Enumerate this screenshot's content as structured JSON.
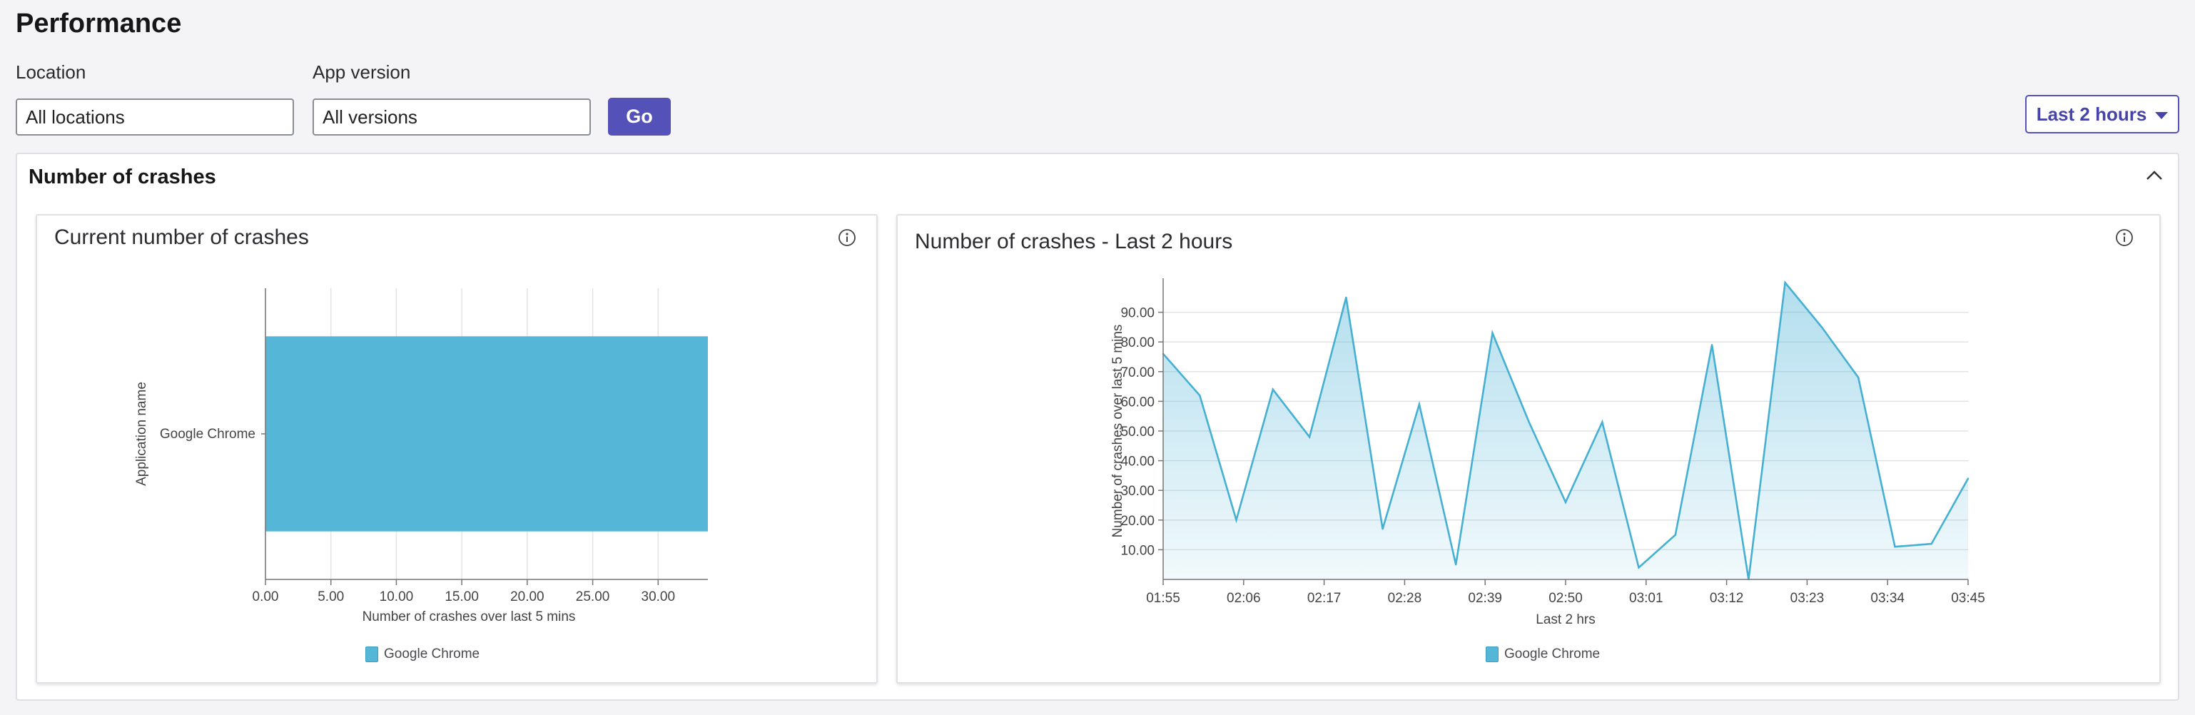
{
  "page": {
    "title": "Performance"
  },
  "filters": {
    "location_label": "Location",
    "location_value": "All locations",
    "version_label": "App version",
    "version_value": "All versions",
    "go_label": "Go",
    "range_label": "Last 2 hours"
  },
  "section": {
    "title": "Number of crashes"
  },
  "colors": {
    "accent": "#5451b8",
    "series": "#55b6d8",
    "series_line": "#45b0d2"
  },
  "icons": {
    "collapse": "chevron-up-icon",
    "info": "info-icon",
    "dropdown": "caret-down-icon"
  },
  "chart_data": [
    {
      "type": "bar",
      "orientation": "horizontal",
      "title": "Current number of crashes",
      "categories": [
        "Google Chrome"
      ],
      "values": [
        33.8
      ],
      "xlabel": "Number of crashes over last 5 mins",
      "ylabel": "Application name",
      "xlim": [
        0,
        33.8
      ],
      "xticks": [
        "0.00",
        "5.00",
        "10.00",
        "15.00",
        "20.00",
        "25.00",
        "30.00"
      ],
      "legend": [
        "Google Chrome"
      ],
      "legend_position": "bottom",
      "grid": true
    },
    {
      "type": "area",
      "title": "Number of crashes - Last 2 hours",
      "x": [
        "01:55",
        "02:00",
        "02:06",
        "02:11",
        "02:15",
        "02:19",
        "02:24",
        "02:28",
        "02:33",
        "02:39",
        "02:44",
        "02:50",
        "02:55",
        "03:01",
        "03:06",
        "03:10",
        "03:14",
        "03:19",
        "03:23",
        "03:29",
        "03:34",
        "03:40",
        "03:45"
      ],
      "series": [
        {
          "name": "Google Chrome",
          "values": [
            76,
            62,
            20,
            64,
            48,
            95,
            17,
            59,
            5,
            83,
            53,
            26,
            53,
            4,
            15,
            79,
            0,
            100,
            85,
            68,
            11,
            12,
            34
          ]
        }
      ],
      "xticks": [
        "01:55",
        "02:06",
        "02:17",
        "02:28",
        "02:39",
        "02:50",
        "03:01",
        "03:12",
        "03:23",
        "03:34",
        "03:45"
      ],
      "yticks": [
        "10.00",
        "20.00",
        "30.00",
        "40.00",
        "50.00",
        "60.00",
        "70.00",
        "80.00",
        "90.00"
      ],
      "xlabel": "Last 2 hrs",
      "ylabel": "Number of crashes over last 5 mins",
      "ylim": [
        0,
        100
      ],
      "legend": [
        "Google Chrome"
      ],
      "legend_position": "bottom",
      "grid": true
    }
  ]
}
